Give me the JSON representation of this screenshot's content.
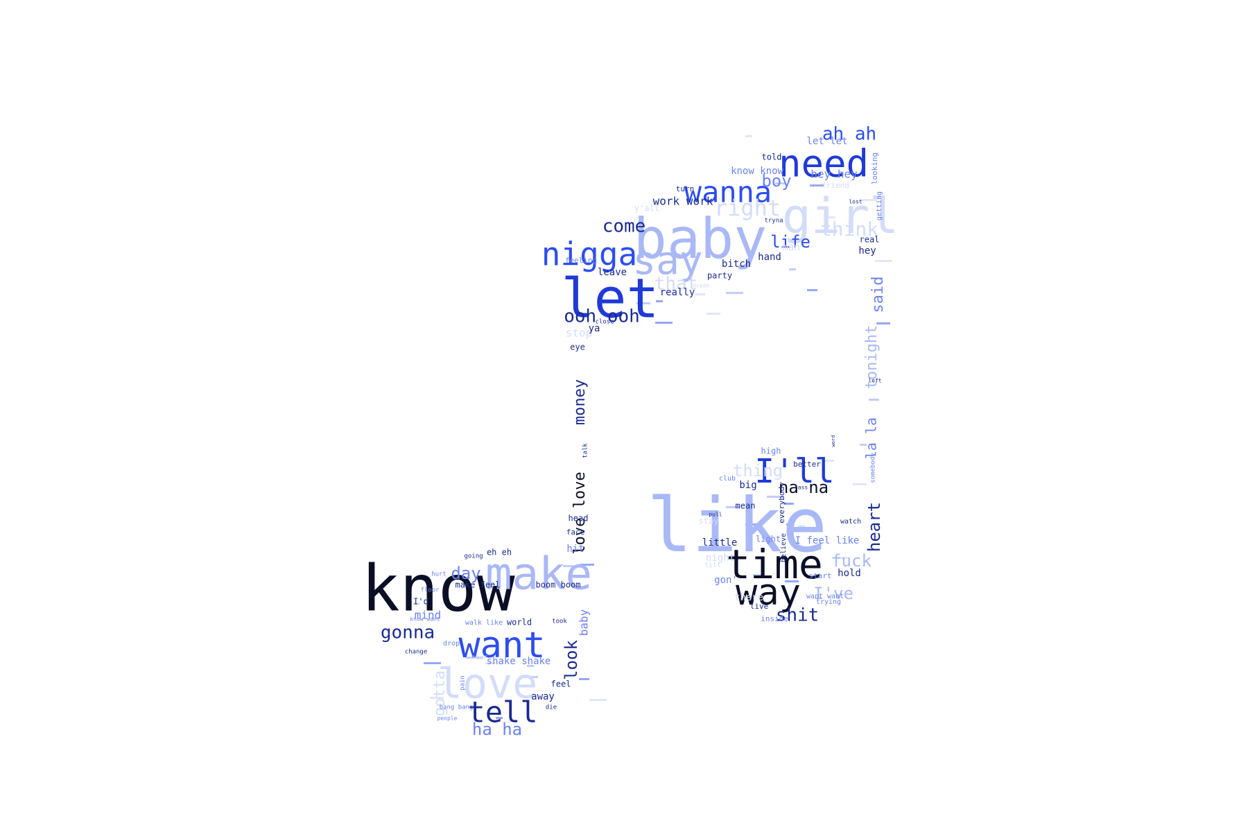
{
  "palette": {
    "black": "#0b0f26",
    "navy": "#1a2a8f",
    "royal": "#1f3ad8",
    "blue": "#2d4df0",
    "mid": "#6a82f2",
    "light": "#a9b8f7",
    "pale": "#d3dcfa"
  },
  "word_cloud": {
    "words": [
      {
        "text": "know",
        "color": "black"
      },
      {
        "text": "like",
        "color": "light"
      },
      {
        "text": "baby",
        "color": "light"
      },
      {
        "text": "let",
        "color": "royal"
      },
      {
        "text": "make",
        "color": "light"
      },
      {
        "text": "girl",
        "color": "pale"
      },
      {
        "text": "need",
        "color": "royal"
      },
      {
        "text": "time",
        "color": "black"
      },
      {
        "text": "want",
        "color": "blue"
      },
      {
        "text": "say",
        "color": "light"
      },
      {
        "text": "nigga",
        "color": "blue"
      },
      {
        "text": "wanna",
        "color": "blue"
      },
      {
        "text": "way",
        "color": "black"
      },
      {
        "text": "love",
        "color": "pale"
      },
      {
        "text": "I'll",
        "color": "royal"
      },
      {
        "text": "tell",
        "color": "navy"
      },
      {
        "text": "right",
        "color": "pale"
      },
      {
        "text": "ooh ooh",
        "color": "navy"
      },
      {
        "text": "come",
        "color": "navy"
      },
      {
        "text": "think",
        "color": "pale"
      },
      {
        "text": "gonna",
        "color": "navy"
      },
      {
        "text": "ah ah",
        "color": "blue"
      },
      {
        "text": "boy",
        "color": "mid"
      },
      {
        "text": "life",
        "color": "blue"
      },
      {
        "text": "that",
        "color": "pale"
      },
      {
        "text": "shit",
        "color": "navy"
      },
      {
        "text": "fuck",
        "color": "light"
      },
      {
        "text": "thing",
        "color": "pale"
      },
      {
        "text": "na na",
        "color": "black"
      },
      {
        "text": "day",
        "color": "mid"
      },
      {
        "text": "ha ha",
        "color": "mid"
      },
      {
        "text": "I've",
        "color": "light"
      },
      {
        "text": "love love",
        "color": "black"
      },
      {
        "text": "money",
        "color": "navy"
      },
      {
        "text": "la la",
        "color": "mid"
      },
      {
        "text": "tonight",
        "color": "light"
      },
      {
        "text": "said",
        "color": "mid"
      },
      {
        "text": "heart",
        "color": "navy"
      },
      {
        "text": "look",
        "color": "navy"
      },
      {
        "text": "gotta",
        "color": "pale"
      },
      {
        "text": "baby",
        "color": "mid"
      },
      {
        "text": "mind",
        "color": "mid"
      },
      {
        "text": "hey hey",
        "color": "mid"
      },
      {
        "text": "work work",
        "color": "navy"
      },
      {
        "text": "know know",
        "color": "mid"
      },
      {
        "text": "let let",
        "color": "mid"
      },
      {
        "text": "told",
        "color": "navy"
      },
      {
        "text": "turn",
        "color": "navy"
      },
      {
        "text": "friend",
        "color": "pale"
      },
      {
        "text": "looking",
        "color": "mid"
      },
      {
        "text": "getting",
        "color": "mid"
      },
      {
        "text": "y'all",
        "color": "pale"
      },
      {
        "text": "real",
        "color": "navy"
      },
      {
        "text": "hey",
        "color": "navy"
      },
      {
        "text": "man",
        "color": "pale"
      },
      {
        "text": "hand",
        "color": "navy"
      },
      {
        "text": "bitch",
        "color": "navy"
      },
      {
        "text": "feeling",
        "color": "mid"
      },
      {
        "text": "leave",
        "color": "navy"
      },
      {
        "text": "party",
        "color": "navy"
      },
      {
        "text": "really",
        "color": "navy"
      },
      {
        "text": "stop",
        "color": "pale"
      },
      {
        "text": "ya",
        "color": "navy"
      },
      {
        "text": "eye",
        "color": "navy"
      },
      {
        "text": "head",
        "color": "navy"
      },
      {
        "text": "face",
        "color": "navy"
      },
      {
        "text": "hit",
        "color": "mid"
      },
      {
        "text": "eh eh",
        "color": "navy"
      },
      {
        "text": "going",
        "color": "navy"
      },
      {
        "text": "make feel",
        "color": "navy"
      },
      {
        "text": "boom boom",
        "color": "navy"
      },
      {
        "text": "I'd",
        "color": "navy"
      },
      {
        "text": "world",
        "color": "navy"
      },
      {
        "text": "took",
        "color": "navy"
      },
      {
        "text": "shake shake",
        "color": "mid"
      },
      {
        "text": "feel",
        "color": "navy"
      },
      {
        "text": "away",
        "color": "navy"
      },
      {
        "text": "hurt",
        "color": "mid"
      },
      {
        "text": "floor",
        "color": "mid"
      },
      {
        "text": "walk like",
        "color": "mid"
      },
      {
        "text": "know want",
        "color": "mid"
      },
      {
        "text": "drop",
        "color": "mid"
      },
      {
        "text": "change",
        "color": "navy"
      },
      {
        "text": "hear",
        "color": "pale"
      },
      {
        "text": "pain",
        "color": "mid"
      },
      {
        "text": "bang bang",
        "color": "mid"
      },
      {
        "text": "people",
        "color": "mid"
      },
      {
        "text": "die",
        "color": "navy"
      },
      {
        "text": "high",
        "color": "mid"
      },
      {
        "text": "better",
        "color": "navy"
      },
      {
        "text": "big",
        "color": "navy"
      },
      {
        "text": "club",
        "color": "mid"
      },
      {
        "text": "mean",
        "color": "navy"
      },
      {
        "text": "everybody",
        "color": "navy"
      },
      {
        "text": "little",
        "color": "navy"
      },
      {
        "text": "light",
        "color": "mid"
      },
      {
        "text": "I feel like",
        "color": "mid"
      },
      {
        "text": "stay",
        "color": "pale"
      },
      {
        "text": "night",
        "color": "pale"
      },
      {
        "text": "believe",
        "color": "navy"
      },
      {
        "text": "hold",
        "color": "navy"
      },
      {
        "text": "want want",
        "color": "mid"
      },
      {
        "text": "start",
        "color": "mid"
      },
      {
        "text": "gon'",
        "color": "mid"
      },
      {
        "text": "there",
        "color": "pale"
      },
      {
        "text": "live",
        "color": "navy"
      },
      {
        "text": "inside",
        "color": "mid"
      },
      {
        "text": "trying",
        "color": "mid"
      },
      {
        "text": "watch",
        "color": "navy"
      },
      {
        "text": "somebody",
        "color": "mid"
      },
      {
        "text": "left",
        "color": "navy"
      },
      {
        "text": "lost",
        "color": "navy"
      },
      {
        "text": "tryna",
        "color": "navy"
      },
      {
        "text": "dream",
        "color": "pale"
      },
      {
        "text": "close",
        "color": "navy"
      },
      {
        "text": "talk",
        "color": "navy"
      },
      {
        "text": "till",
        "color": "pale"
      },
      {
        "text": "pull",
        "color": "navy"
      },
      {
        "text": "ass",
        "color": "navy"
      },
      {
        "text": "word",
        "color": "navy"
      }
    ]
  }
}
